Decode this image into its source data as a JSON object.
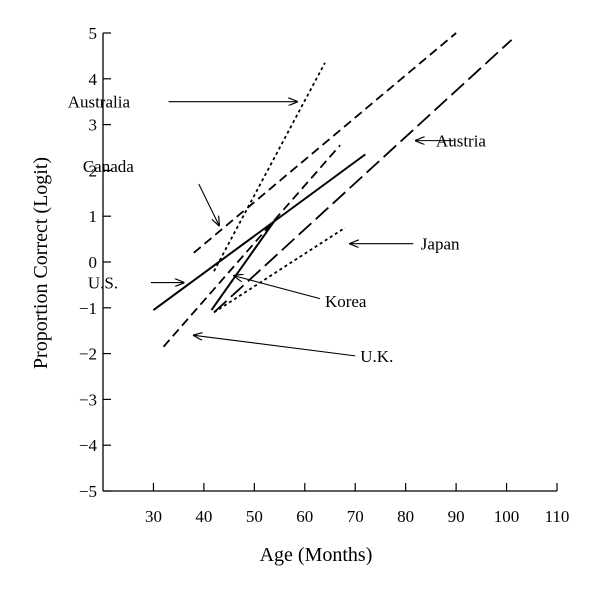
{
  "chart_data": {
    "type": "line",
    "xlabel": "Age (Months)",
    "ylabel": "Proportion Correct (Logit)",
    "xlim": [
      20,
      110
    ],
    "ylim": [
      -5,
      5
    ],
    "x_ticks": [
      "30",
      "40",
      "50",
      "60",
      "70",
      "80",
      "90",
      "100",
      "110"
    ],
    "y_ticks": [
      "5",
      "4",
      "3",
      "2",
      "1",
      "0",
      "−1",
      "−2",
      "−3",
      "−4",
      "−5"
    ],
    "grid": false,
    "series": [
      {
        "name": "Australia",
        "dash": "dotted",
        "x": [
          42,
          64
        ],
        "y": [
          -0.2,
          4.35
        ]
      },
      {
        "name": "Canada",
        "dash": "dashed",
        "x": [
          38,
          90
        ],
        "y": [
          0.2,
          5.0
        ]
      },
      {
        "name": "Austria",
        "dash": "long-dash",
        "x": [
          42,
          101
        ],
        "y": [
          -1.1,
          4.85
        ]
      },
      {
        "name": "Japan",
        "dash": "dotted",
        "x": [
          42,
          68
        ],
        "y": [
          -1.1,
          0.75
        ]
      },
      {
        "name": "U.S.",
        "dash": "solid",
        "x": [
          30,
          72
        ],
        "y": [
          -1.05,
          2.35
        ]
      },
      {
        "name": "Korea",
        "dash": "solid",
        "x": [
          41.5,
          54
        ],
        "y": [
          -1.05,
          0.9
        ]
      },
      {
        "name": "U.K.",
        "dash": "dashed",
        "x": [
          32,
          67
        ],
        "y": [
          -1.85,
          2.55
        ]
      }
    ],
    "annotations": [
      {
        "series": "Australia",
        "text": "Australia",
        "label_at": [
          13,
          3.5
        ],
        "arrow_from": [
          33,
          3.5
        ],
        "arrow_to": [
          58.5,
          3.5
        ]
      },
      {
        "series": "Canada",
        "text": "Canada",
        "label_at": [
          16,
          2.1
        ],
        "arrow_from": [
          39,
          1.7
        ],
        "arrow_to": [
          43,
          0.8
        ]
      },
      {
        "series": "Austria",
        "text": "Austria",
        "label_at": [
          86,
          2.65
        ],
        "arrow_from": [
          89.5,
          2.65
        ],
        "arrow_to": [
          82,
          2.65
        ]
      },
      {
        "series": "Japan",
        "text": "Japan",
        "label_at": [
          83,
          0.4
        ],
        "arrow_from": [
          81.5,
          0.4
        ],
        "arrow_to": [
          69,
          0.4
        ]
      },
      {
        "series": "U.S.",
        "text": "U.S.",
        "label_at": [
          17,
          -0.45
        ],
        "arrow_from": [
          29.5,
          -0.45
        ],
        "arrow_to": [
          36,
          -0.45
        ]
      },
      {
        "series": "Korea",
        "text": "Korea",
        "label_at": [
          64,
          -0.85
        ],
        "arrow_from": [
          63,
          -0.8
        ],
        "arrow_to": [
          46,
          -0.3
        ]
      },
      {
        "series": "U.K.",
        "text": "U.K.",
        "label_at": [
          71,
          -2.05
        ],
        "arrow_from": [
          70,
          -2.05
        ],
        "arrow_to": [
          38,
          -1.6
        ]
      }
    ]
  }
}
